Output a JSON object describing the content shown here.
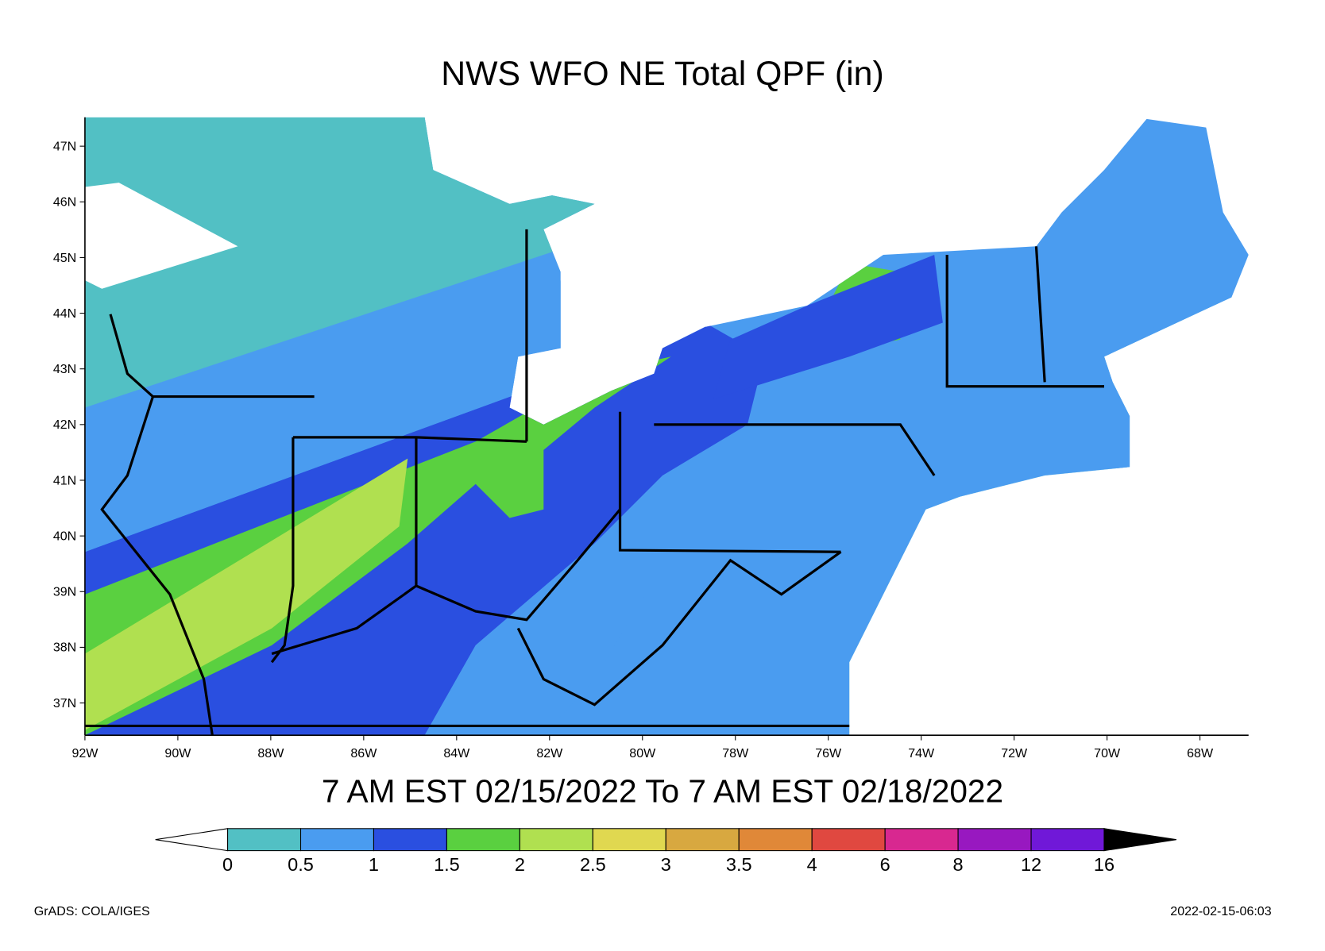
{
  "title": "NWS WFO NE Total QPF (in)",
  "longitude_labels": [
    "92W",
    "90W",
    "88W",
    "86W",
    "84W",
    "82W",
    "80W",
    "78W",
    "76W",
    "74W",
    "72W",
    "70W",
    "68W"
  ],
  "latitude_labels": [
    "47N",
    "46N",
    "45N",
    "44N",
    "43N",
    "42N",
    "41N",
    "40N",
    "39N",
    "38N",
    "37N"
  ],
  "subtitle": "7 AM EST 02/15/2022 To 7 AM EST 02/18/2022",
  "colorbar": {
    "levels": [
      0,
      0.5,
      1,
      1.5,
      2,
      2.5,
      3,
      3.5,
      4,
      6,
      8,
      12,
      16
    ],
    "colors": [
      "#52c0c4",
      "#4a9cf0",
      "#2a4fe0",
      "#5ad040",
      "#b0e050",
      "#e0d850",
      "#d8a840",
      "#e08838",
      "#e04840",
      "#d82890",
      "#9818c0",
      "#7018d8"
    ]
  },
  "footer_left": "GrADS: COLA/IGES",
  "footer_right": "2022-02-15-06:03"
}
